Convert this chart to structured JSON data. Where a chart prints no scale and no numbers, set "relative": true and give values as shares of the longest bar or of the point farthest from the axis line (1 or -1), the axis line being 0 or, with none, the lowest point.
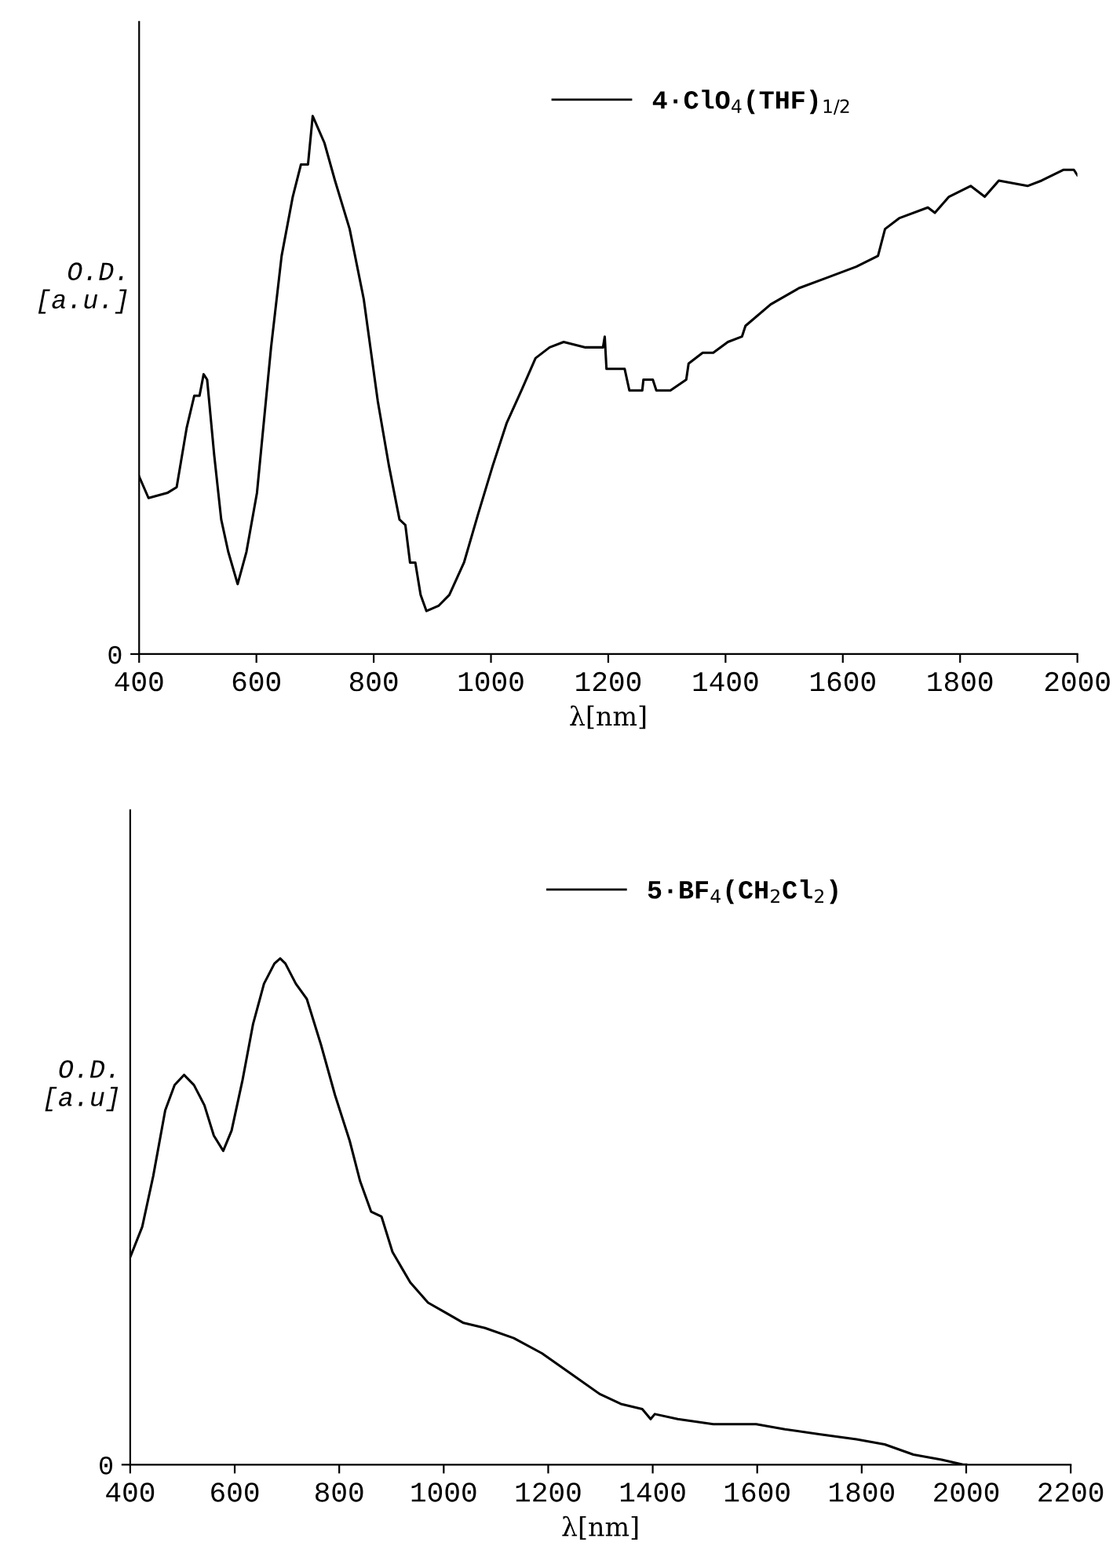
{
  "chart_data": [
    {
      "type": "line",
      "relative": true,
      "xlabel": "λ[nm]",
      "ylabel": "O.D.\n[a.u.]",
      "annotations": [
        "0"
      ],
      "legend": "top",
      "grid": false,
      "xlim": [
        400,
        2000
      ],
      "xticks": [
        400,
        600,
        800,
        1000,
        1200,
        1400,
        1600,
        1800,
        2000
      ],
      "series": [
        {
          "name": "4·ClO$_{4}$(THF)$_{1/2}$",
          "color": "#000000",
          "x": [
            400,
            416,
            449,
            464,
            481,
            494,
            503,
            510,
            516,
            528,
            540,
            552,
            568,
            583,
            601,
            625,
            643,
            662,
            676,
            688,
            696,
            700,
            716,
            734,
            759,
            783,
            807,
            826,
            844,
            854,
            862,
            871,
            880,
            890,
            911,
            929,
            954,
            978,
            1003,
            1027,
            1052,
            1076,
            1100,
            1124,
            1161,
            1191,
            1194,
            1197,
            1228,
            1236,
            1258,
            1260,
            1276,
            1282,
            1306,
            1333,
            1337,
            1361,
            1379,
            1404,
            1428,
            1434,
            1477,
            1525,
            1574,
            1623,
            1660,
            1672,
            1696,
            1745,
            1757,
            1781,
            1818,
            1842,
            1866,
            1915,
            1939,
            1976,
            1994,
            2000
          ],
          "values": [
            0.33,
            0.29,
            0.3,
            0.31,
            0.42,
            0.48,
            0.48,
            0.52,
            0.51,
            0.37,
            0.25,
            0.19,
            0.13,
            0.19,
            0.3,
            0.57,
            0.74,
            0.85,
            0.91,
            0.91,
            1.0,
            0.99,
            0.95,
            0.88,
            0.79,
            0.66,
            0.47,
            0.35,
            0.25,
            0.24,
            0.17,
            0.17,
            0.11,
            0.08,
            0.09,
            0.11,
            0.17,
            0.26,
            0.35,
            0.43,
            0.49,
            0.55,
            0.57,
            0.58,
            0.57,
            0.57,
            0.59,
            0.53,
            0.53,
            0.49,
            0.49,
            0.51,
            0.51,
            0.49,
            0.49,
            0.51,
            0.54,
            0.56,
            0.56,
            0.58,
            0.59,
            0.61,
            0.65,
            0.68,
            0.7,
            0.72,
            0.74,
            0.79,
            0.81,
            0.83,
            0.82,
            0.85,
            0.87,
            0.85,
            0.88,
            0.87,
            0.88,
            0.9,
            0.9,
            0.89
          ]
        }
      ]
    },
    {
      "type": "line",
      "relative": true,
      "xlabel": "λ[nm]",
      "ylabel": "O.D.\n[a.u]",
      "annotations": [
        "0"
      ],
      "legend": "top",
      "grid": false,
      "xlim": [
        400,
        2200
      ],
      "xticks": [
        400,
        600,
        800,
        1000,
        1200,
        1400,
        1600,
        1800,
        2000,
        2200
      ],
      "series": [
        {
          "name": "5·BF$_{4}$(CH$_{2}$Cl$_{2}$)",
          "color": "#000000",
          "x": [
            400,
            423,
            444,
            467,
            485,
            503,
            522,
            542,
            560,
            578,
            594,
            615,
            635,
            656,
            676,
            687,
            697,
            717,
            738,
            765,
            792,
            820,
            840,
            861,
            881,
            902,
            936,
            970,
            1004,
            1038,
            1079,
            1134,
            1188,
            1243,
            1298,
            1339,
            1380,
            1396,
            1404,
            1448,
            1516,
            1598,
            1653,
            1721,
            1790,
            1844,
            1899,
            1953,
            1994,
            2000
          ],
          "values": [
            0.41,
            0.47,
            0.57,
            0.7,
            0.75,
            0.77,
            0.75,
            0.71,
            0.65,
            0.62,
            0.66,
            0.76,
            0.87,
            0.95,
            0.99,
            1.0,
            0.99,
            0.95,
            0.92,
            0.83,
            0.73,
            0.64,
            0.56,
            0.5,
            0.49,
            0.42,
            0.36,
            0.32,
            0.3,
            0.28,
            0.27,
            0.25,
            0.22,
            0.18,
            0.14,
            0.12,
            0.11,
            0.09,
            0.1,
            0.09,
            0.08,
            0.08,
            0.07,
            0.06,
            0.05,
            0.04,
            0.02,
            0.01,
            0.0,
            0.0
          ]
        }
      ]
    }
  ]
}
